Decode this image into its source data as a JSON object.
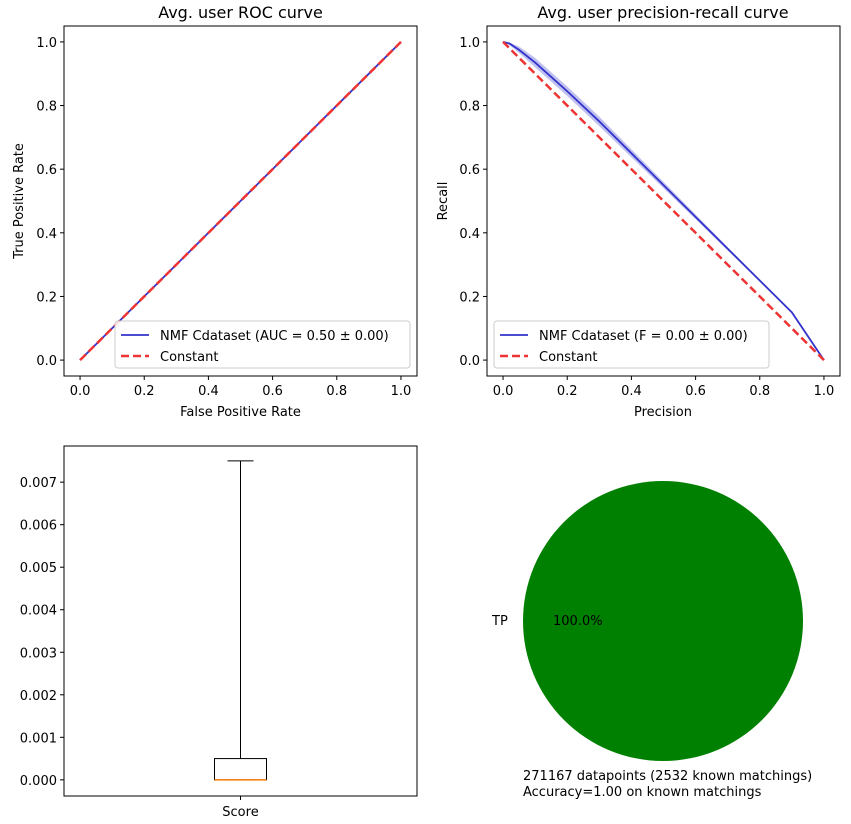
{
  "chart_data": [
    {
      "type": "line",
      "title": "Avg. user ROC curve",
      "xlabel": "False Positive Rate",
      "ylabel": "True Positive Rate",
      "xlim": [
        -0.05,
        1.05
      ],
      "ylim": [
        -0.05,
        1.05
      ],
      "xticks": [
        "0.0",
        "0.2",
        "0.4",
        "0.6",
        "0.8",
        "1.0"
      ],
      "yticks": [
        "0.0",
        "0.2",
        "0.4",
        "0.6",
        "0.8",
        "1.0"
      ],
      "legend_position": "lower-right",
      "series": [
        {
          "name": "NMF Cdataset (AUC = 0.50 ± 0.00)",
          "color": "#3333cc",
          "style": "solid",
          "x": [
            0,
            1
          ],
          "y": [
            0,
            1
          ]
        },
        {
          "name": "Constant",
          "color": "#ee3333",
          "style": "dashed",
          "x": [
            0,
            1
          ],
          "y": [
            0,
            1
          ]
        }
      ]
    },
    {
      "type": "line",
      "title": "Avg. user precision-recall curve",
      "xlabel": "Precision",
      "ylabel": "Recall",
      "xlim": [
        -0.05,
        1.05
      ],
      "ylim": [
        -0.05,
        1.05
      ],
      "xticks": [
        "0.0",
        "0.2",
        "0.4",
        "0.6",
        "0.8",
        "1.0"
      ],
      "yticks": [
        "0.0",
        "0.2",
        "0.4",
        "0.6",
        "0.8",
        "1.0"
      ],
      "legend_position": "lower-left",
      "series": [
        {
          "name": "NMF Cdataset (F = 0.00 ± 0.00)",
          "color": "#3333cc",
          "style": "solid",
          "x": [
            0,
            0.02,
            0.05,
            0.1,
            0.2,
            0.3,
            0.5,
            0.7,
            0.9,
            1.0
          ],
          "y": [
            1.0,
            0.995,
            0.975,
            0.935,
            0.845,
            0.75,
            0.55,
            0.35,
            0.15,
            0.0
          ],
          "band_upper": [
            1.0,
            0.998,
            0.985,
            0.95,
            0.86,
            0.765,
            0.56,
            0.355,
            0.152,
            0.0
          ],
          "band_lower": [
            1.0,
            0.99,
            0.965,
            0.92,
            0.83,
            0.735,
            0.54,
            0.345,
            0.148,
            0.0
          ]
        },
        {
          "name": "Constant",
          "color": "#ee3333",
          "style": "dashed",
          "x": [
            0,
            1
          ],
          "y": [
            1,
            0
          ]
        }
      ]
    },
    {
      "type": "box",
      "categories": [
        "Score"
      ],
      "yticks": [
        "0.000",
        "0.001",
        "0.002",
        "0.003",
        "0.004",
        "0.005",
        "0.006",
        "0.007"
      ],
      "ylim": [
        -0.00038,
        0.00785
      ],
      "box": {
        "whisker_low": 0.0,
        "q1": 0.0,
        "median": 0.0,
        "q3": 0.0005,
        "whisker_high": 0.0075
      }
    },
    {
      "type": "pie",
      "slices": [
        {
          "label": "TP",
          "value": 100.0,
          "pct_label": "100.0%",
          "color": "#008000"
        }
      ],
      "caption_lines": [
        "271167 datapoints (2532 known matchings)",
        "Accuracy=1.00 on known matchings"
      ]
    }
  ]
}
